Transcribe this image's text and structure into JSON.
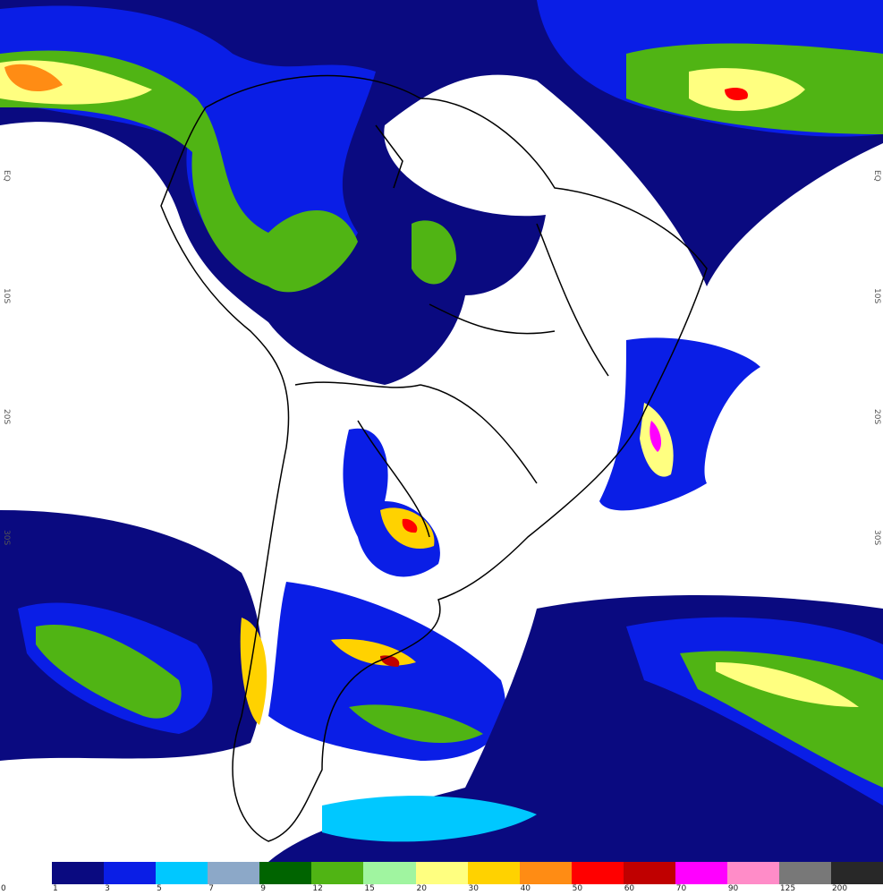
{
  "legend": {
    "bins": [
      "0",
      "1",
      "3",
      "5",
      "7",
      "9",
      "12",
      "15",
      "20",
      "30",
      "40",
      "50",
      "60",
      "70",
      "90",
      "125",
      "200"
    ],
    "colors": [
      "#ffffff",
      "#0a0a80",
      "#0a1ee6",
      "#00c8ff",
      "#8ca8c8",
      "#006400",
      "#50b414",
      "#a0f5a0",
      "#ffff80",
      "#ffd200",
      "#ff8c14",
      "#ff0000",
      "#c00000",
      "#ff00ff",
      "#ff8cc8",
      "#787878",
      "#282828"
    ]
  },
  "lat_labels": [
    "EQ",
    "10S",
    "20S",
    "30S"
  ]
}
